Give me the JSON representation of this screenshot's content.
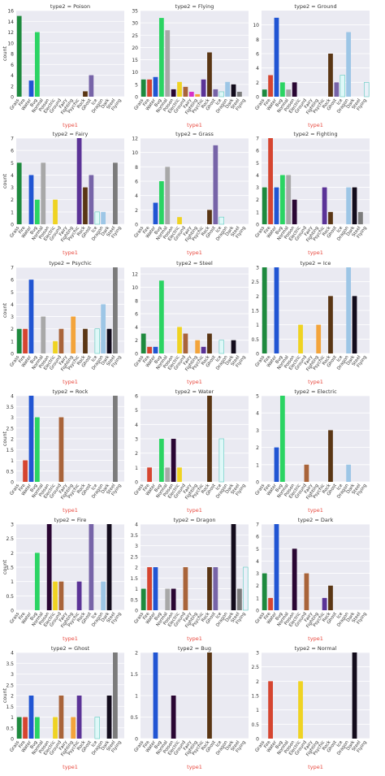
{
  "chart_meta": {
    "categories": [
      "Grass",
      "Fire",
      "Water",
      "Bug",
      "Normal",
      "Poison",
      "Electric",
      "Ground",
      "Fairy",
      "Fighting",
      "Psychic",
      "Rock",
      "Ghost",
      "Ice",
      "Dragon",
      "Dark",
      "Steel",
      "Flying"
    ],
    "colors": [
      "#1e8a3e",
      "#d64530",
      "#2155d3",
      "#2bd463",
      "#a8a8a8",
      "#2a0633",
      "#efd322",
      "#a9643a",
      "#d633c8",
      "#f3a43b",
      "#5b3397",
      "#5a3614",
      "#7764a8",
      "#dff8f8",
      "#9dc6e6",
      "#130c1c",
      "#7b7b7b",
      "#eaf0f8"
    ],
    "xlabel": "type1",
    "ylabel": "count",
    "grid": true
  },
  "chart_data": [
    {
      "type": "bar",
      "title": "type2 = Poison",
      "ylim": [
        0,
        16
      ],
      "yticks": [
        0,
        2,
        4,
        6,
        8,
        10,
        12,
        14,
        16
      ],
      "values": [
        15,
        0,
        3,
        12,
        0,
        0,
        0,
        0,
        0,
        0,
        0,
        1,
        4,
        0,
        0,
        0,
        0,
        0
      ]
    },
    {
      "type": "bar",
      "title": "type2 = Flying",
      "ylim": [
        0,
        35
      ],
      "yticks": [
        0,
        5,
        10,
        15,
        20,
        25,
        30,
        35
      ],
      "values": [
        7,
        7,
        8,
        32,
        27,
        3,
        6,
        4,
        2,
        1,
        7,
        18,
        3,
        2,
        6,
        5,
        2,
        0
      ]
    },
    {
      "type": "bar",
      "title": "type2 = Ground",
      "ylim": [
        0,
        12
      ],
      "yticks": [
        0,
        2,
        4,
        6,
        8,
        10
      ],
      "values": [
        1,
        3,
        11,
        2,
        1,
        2,
        0,
        0,
        0,
        0,
        0,
        6,
        2,
        3,
        9,
        0,
        0,
        2
      ]
    },
    {
      "type": "bar",
      "title": "type2 = Fairy",
      "ylim": [
        0,
        7
      ],
      "yticks": [
        0,
        1,
        2,
        3,
        4,
        5,
        6,
        7
      ],
      "values": [
        5,
        0,
        4,
        2,
        5,
        0,
        2,
        0,
        0,
        0,
        7,
        3,
        4,
        1,
        1,
        0,
        5,
        0
      ]
    },
    {
      "type": "bar",
      "title": "type2 = Grass",
      "ylim": [
        0,
        12
      ],
      "yticks": [
        0,
        2,
        4,
        6,
        8,
        10,
        12
      ],
      "values": [
        0,
        0,
        3,
        6,
        8,
        0,
        1,
        0,
        0,
        0,
        0,
        2,
        11,
        1,
        0,
        0,
        0,
        0
      ]
    },
    {
      "type": "bar",
      "title": "type2 = Fighting",
      "ylim": [
        0,
        7
      ],
      "yticks": [
        0,
        1,
        2,
        3,
        4,
        5,
        6,
        7
      ],
      "values": [
        3,
        7,
        3,
        4,
        4,
        2,
        0,
        0,
        0,
        0,
        3,
        1,
        0,
        0,
        3,
        3,
        1,
        0
      ]
    },
    {
      "type": "bar",
      "title": "type2 = Psychic",
      "ylim": [
        0,
        7
      ],
      "yticks": [
        0,
        1,
        2,
        3,
        4,
        5,
        6,
        7
      ],
      "values": [
        2,
        2,
        6,
        0,
        3,
        0,
        1,
        2,
        0,
        3,
        0,
        2,
        0,
        2,
        4,
        2,
        7,
        0
      ]
    },
    {
      "type": "bar",
      "title": "type2 = Steel",
      "ylim": [
        0,
        13
      ],
      "yticks": [
        0,
        2,
        4,
        6,
        8,
        10,
        12
      ],
      "values": [
        3,
        1,
        1,
        11,
        0,
        0,
        4,
        3,
        0,
        2,
        1,
        3,
        0,
        2,
        0,
        2,
        0,
        0
      ]
    },
    {
      "type": "bar",
      "title": "type2 = Ice",
      "ylim": [
        0,
        3
      ],
      "yticks": [
        0,
        0.5,
        1,
        1.5,
        2,
        2.5,
        3
      ],
      "values": [
        3,
        0,
        3,
        0,
        0,
        0,
        1,
        0,
        0,
        1,
        0,
        2,
        0,
        0,
        3,
        2,
        0,
        0
      ]
    },
    {
      "type": "bar",
      "title": "type2 = Rock",
      "ylim": [
        0,
        4
      ],
      "yticks": [
        0,
        0.5,
        1,
        1.5,
        2,
        2.5,
        3,
        3.5,
        4
      ],
      "values": [
        0,
        1,
        4,
        3,
        0,
        0,
        0,
        3,
        0,
        0,
        0,
        0,
        0,
        0,
        0,
        0,
        4,
        0
      ]
    },
    {
      "type": "bar",
      "title": "type2 = Water",
      "ylim": [
        0,
        6
      ],
      "yticks": [
        0,
        1,
        2,
        3,
        4,
        5,
        6
      ],
      "values": [
        0,
        1,
        0,
        3,
        1,
        3,
        1,
        0,
        0,
        0,
        0,
        6,
        0,
        3,
        0,
        0,
        0,
        0
      ]
    },
    {
      "type": "bar",
      "title": "type2 = Electric",
      "ylim": [
        0,
        5
      ],
      "yticks": [
        0,
        1,
        2,
        3,
        4,
        5
      ],
      "values": [
        0,
        0,
        2,
        5,
        0,
        0,
        0,
        1,
        0,
        0,
        0,
        3,
        0,
        0,
        1,
        0,
        0,
        0
      ]
    },
    {
      "type": "bar",
      "title": "type2 = Fire",
      "ylim": [
        0,
        3
      ],
      "yticks": [
        0,
        0.5,
        1,
        1.5,
        2,
        2.5,
        3
      ],
      "values": [
        0,
        0,
        0,
        2,
        0,
        3,
        1,
        1,
        0,
        0,
        1,
        0,
        3,
        0,
        1,
        3,
        0,
        0
      ]
    },
    {
      "type": "bar",
      "title": "type2 = Dragon",
      "ylim": [
        0,
        4
      ],
      "yticks": [
        0,
        0.5,
        1,
        1.5,
        2,
        2.5,
        3,
        3.5,
        4
      ],
      "values": [
        1,
        2,
        2,
        0,
        1,
        1,
        0,
        2,
        0,
        0,
        0,
        2,
        2,
        0,
        0,
        4,
        1,
        2
      ]
    },
    {
      "type": "bar",
      "title": "type2 = Dark",
      "ylim": [
        0,
        7
      ],
      "yticks": [
        0,
        1,
        2,
        3,
        4,
        5,
        6,
        7
      ],
      "values": [
        3,
        1,
        7,
        0,
        0,
        5,
        0,
        3,
        0,
        0,
        1,
        2,
        0,
        0,
        0,
        0,
        0,
        0
      ]
    },
    {
      "type": "bar",
      "title": "type2 = Ghost",
      "ylim": [
        0,
        4
      ],
      "yticks": [
        0,
        0.5,
        1,
        1.5,
        2,
        2.5,
        3,
        3.5,
        4
      ],
      "values": [
        1,
        1,
        2,
        1,
        0,
        0,
        1,
        2,
        0,
        1,
        2,
        0,
        0,
        1,
        0,
        2,
        4,
        0
      ]
    },
    {
      "type": "bar",
      "title": "type2 = Bug",
      "ylim": [
        0,
        2
      ],
      "yticks": [
        0,
        0.5,
        1,
        1.5,
        2
      ],
      "values": [
        0,
        0,
        2,
        0,
        0,
        1,
        0,
        0,
        0,
        0,
        0,
        2,
        0,
        0,
        0,
        0,
        0,
        0
      ]
    },
    {
      "type": "bar",
      "title": "type2 = Normal",
      "ylim": [
        0,
        3
      ],
      "yticks": [
        0,
        0.5,
        1,
        1.5,
        2,
        2.5,
        3
      ],
      "values": [
        0,
        2,
        0,
        0,
        0,
        0,
        2,
        0,
        0,
        0,
        0,
        0,
        0,
        0,
        0,
        3,
        0,
        0
      ]
    }
  ]
}
